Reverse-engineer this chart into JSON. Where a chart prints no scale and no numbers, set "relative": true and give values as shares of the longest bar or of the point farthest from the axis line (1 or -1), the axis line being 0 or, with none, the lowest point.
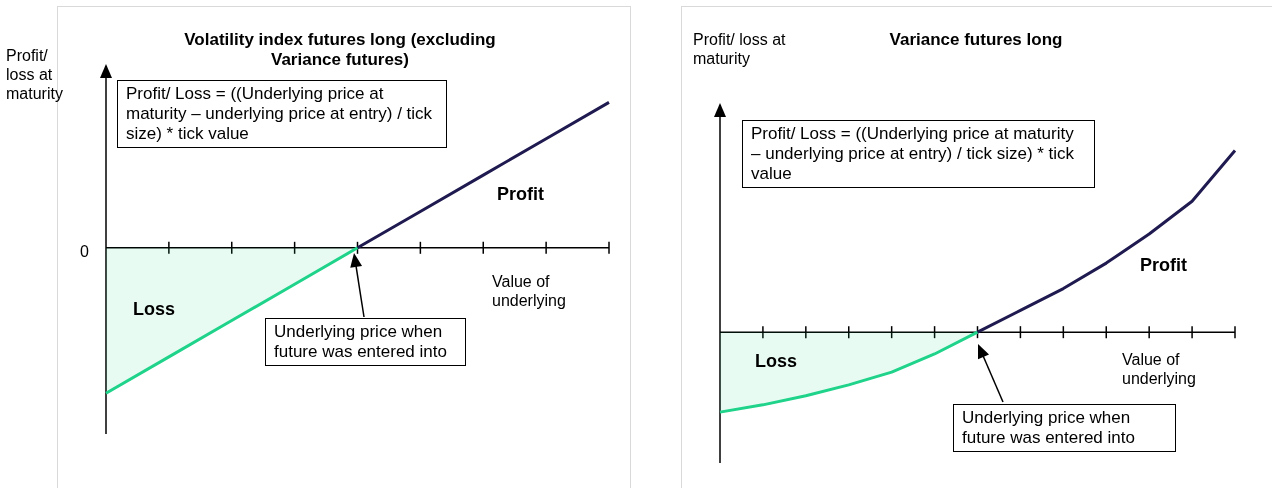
{
  "chart_data": [
    {
      "type": "line",
      "title": "Volatility index futures long (excluding Variance futures)",
      "xlabel": "Value of underlying",
      "ylabel": "Profit/ loss at maturity",
      "relative": true,
      "categories": [
        null,
        null,
        null,
        null,
        null,
        null,
        null,
        null,
        null
      ],
      "series": [
        {
          "type": "area",
          "color": "#1fd38a",
          "values": [
            -1,
            -0.75,
            -0.5,
            -0.25,
            0,
            null,
            null,
            null,
            null
          ]
        },
        {
          "type": "line",
          "color": "#1f1a4f",
          "values": [
            null,
            null,
            null,
            null,
            0,
            0.25,
            0.5,
            0.75,
            1
          ]
        }
      ],
      "annotations": [
        "Profit/ Loss = ((Underlying price at maturity – underlying price at entry) / tick size) * tick value",
        "Profit",
        "Loss",
        "Underlying price when future was entered into",
        "0"
      ]
    },
    {
      "type": "line",
      "title": "Variance futures long",
      "xlabel": "Value of underlying",
      "ylabel": "Profit/ loss at maturity",
      "relative": true,
      "categories": [
        null,
        null,
        null,
        null,
        null,
        null,
        null,
        null,
        null,
        null,
        null,
        null,
        null
      ],
      "series": [
        {
          "type": "area",
          "color": "#1fd38a",
          "values": [
            -0.44,
            -0.4,
            -0.35,
            -0.29,
            -0.22,
            -0.12,
            0,
            null,
            null,
            null,
            null,
            null,
            null
          ]
        },
        {
          "type": "line",
          "color": "#1f1a4f",
          "values": [
            null,
            null,
            null,
            null,
            null,
            null,
            0,
            0.12,
            0.24,
            0.38,
            0.54,
            0.72,
            1
          ]
        }
      ],
      "annotations": [
        "Profit/ Loss = ((Underlying price at maturity – underlying price at entry) / tick size) * tick value",
        "Profit",
        "Loss",
        "Underlying price when future was entered into"
      ]
    }
  ]
}
